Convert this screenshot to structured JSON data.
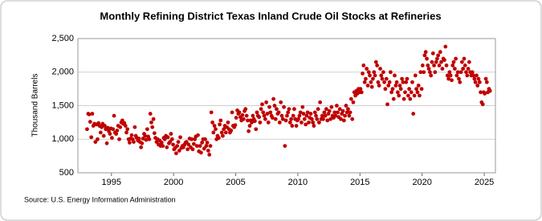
{
  "chart_data": {
    "type": "scatter",
    "title": "Monthly Refining District Texas Inland Crude Oil Stocks at Refineries",
    "y_label": "Thousand Barrels",
    "source": "Source: U.S. Energy Information Administration",
    "color": "#c00000",
    "grid": true,
    "xlim": [
      1992.3,
      2025.9
    ],
    "xticks": [
      1995,
      2000,
      2005,
      2010,
      2015,
      2020,
      2025
    ],
    "ylim": [
      500,
      2500
    ],
    "yticks": [
      500,
      {
        "value": 1000,
        "label": "1,000"
      },
      {
        "value": 1500,
        "label": "1,500"
      },
      {
        "value": 2000,
        "label": "2,000"
      },
      {
        "value": 2500,
        "label": "2,500"
      }
    ],
    "series": [
      {
        "name": "Texas Inland Crude Oil Stocks",
        "color": "#c00000",
        "x": [
          1993.04,
          1993.13,
          1993.21,
          1993.29,
          1993.38,
          1993.46,
          1993.54,
          1993.63,
          1993.71,
          1993.79,
          1993.88,
          1993.96,
          1994.04,
          1994.13,
          1994.21,
          1994.29,
          1994.38,
          1994.46,
          1994.54,
          1994.63,
          1994.71,
          1994.79,
          1994.88,
          1994.96,
          1995.04,
          1995.13,
          1995.21,
          1995.29,
          1995.38,
          1995.46,
          1995.54,
          1995.63,
          1995.71,
          1995.79,
          1995.88,
          1995.96,
          1996.04,
          1996.13,
          1996.21,
          1996.29,
          1996.38,
          1996.46,
          1996.54,
          1996.63,
          1996.71,
          1996.79,
          1996.88,
          1996.96,
          1997.04,
          1997.13,
          1997.21,
          1997.29,
          1997.38,
          1997.46,
          1997.54,
          1997.63,
          1997.71,
          1997.79,
          1997.88,
          1997.96,
          1998.04,
          1998.13,
          1998.21,
          1998.29,
          1998.38,
          1998.46,
          1998.54,
          1998.63,
          1998.71,
          1998.79,
          1998.88,
          1998.96,
          1999.04,
          1999.13,
          1999.21,
          1999.29,
          1999.38,
          1999.46,
          1999.54,
          1999.63,
          1999.71,
          1999.79,
          1999.88,
          1999.96,
          2000.04,
          2000.13,
          2000.21,
          2000.29,
          2000.38,
          2000.46,
          2000.54,
          2000.63,
          2000.71,
          2000.79,
          2000.88,
          2000.96,
          2001.04,
          2001.13,
          2001.21,
          2001.29,
          2001.38,
          2001.46,
          2001.54,
          2001.63,
          2001.71,
          2001.79,
          2001.88,
          2001.96,
          2002.04,
          2002.13,
          2002.21,
          2002.29,
          2002.38,
          2002.46,
          2002.54,
          2002.63,
          2002.71,
          2002.79,
          2002.88,
          2002.96,
          2003.04,
          2003.13,
          2003.21,
          2003.29,
          2003.38,
          2003.46,
          2003.54,
          2003.63,
          2003.71,
          2003.79,
          2003.88,
          2003.96,
          2004.04,
          2004.13,
          2004.21,
          2004.29,
          2004.38,
          2004.46,
          2004.54,
          2004.63,
          2004.71,
          2004.79,
          2004.88,
          2004.96,
          2005.04,
          2005.13,
          2005.21,
          2005.29,
          2005.38,
          2005.46,
          2005.54,
          2005.63,
          2005.71,
          2005.79,
          2005.88,
          2005.96,
          2006.04,
          2006.13,
          2006.21,
          2006.29,
          2006.38,
          2006.46,
          2006.54,
          2006.63,
          2006.71,
          2006.79,
          2006.88,
          2006.96,
          2007.04,
          2007.13,
          2007.21,
          2007.29,
          2007.38,
          2007.46,
          2007.54,
          2007.63,
          2007.71,
          2007.79,
          2007.88,
          2007.96,
          2008.04,
          2008.13,
          2008.21,
          2008.29,
          2008.38,
          2008.46,
          2008.54,
          2008.63,
          2008.71,
          2008.79,
          2008.88,
          2008.96,
          2009.04,
          2009.13,
          2009.21,
          2009.29,
          2009.38,
          2009.46,
          2009.54,
          2009.63,
          2009.71,
          2009.79,
          2009.88,
          2009.96,
          2010.04,
          2010.13,
          2010.21,
          2010.29,
          2010.38,
          2010.46,
          2010.54,
          2010.63,
          2010.71,
          2010.79,
          2010.88,
          2010.96,
          2011.04,
          2011.13,
          2011.21,
          2011.29,
          2011.38,
          2011.46,
          2011.54,
          2011.63,
          2011.71,
          2011.79,
          2011.88,
          2011.96,
          2012.04,
          2012.13,
          2012.21,
          2012.29,
          2012.38,
          2012.46,
          2012.54,
          2012.63,
          2012.71,
          2012.79,
          2012.88,
          2012.96,
          2013.04,
          2013.13,
          2013.21,
          2013.29,
          2013.38,
          2013.46,
          2013.54,
          2013.63,
          2013.71,
          2013.79,
          2013.88,
          2013.96,
          2014.04,
          2014.13,
          2014.21,
          2014.29,
          2014.38,
          2014.46,
          2014.54,
          2014.63,
          2014.71,
          2014.79,
          2014.88,
          2014.96,
          2015.04,
          2015.13,
          2015.21,
          2015.29,
          2015.38,
          2015.46,
          2015.54,
          2015.63,
          2015.71,
          2015.79,
          2015.88,
          2015.96,
          2016.04,
          2016.13,
          2016.21,
          2016.29,
          2016.38,
          2016.46,
          2016.54,
          2016.63,
          2016.71,
          2016.79,
          2016.88,
          2016.96,
          2017.04,
          2017.13,
          2017.21,
          2017.29,
          2017.38,
          2017.46,
          2017.54,
          2017.63,
          2017.71,
          2017.79,
          2017.88,
          2017.96,
          2018.04,
          2018.13,
          2018.21,
          2018.29,
          2018.38,
          2018.46,
          2018.54,
          2018.63,
          2018.71,
          2018.79,
          2018.88,
          2018.96,
          2019.04,
          2019.13,
          2019.21,
          2019.29,
          2019.38,
          2019.46,
          2019.54,
          2019.63,
          2019.71,
          2019.79,
          2019.88,
          2019.96,
          2020.04,
          2020.13,
          2020.21,
          2020.29,
          2020.38,
          2020.46,
          2020.54,
          2020.63,
          2020.71,
          2020.79,
          2020.88,
          2020.96,
          2021.04,
          2021.13,
          2021.21,
          2021.29,
          2021.38,
          2021.46,
          2021.54,
          2021.63,
          2021.71,
          2021.79,
          2021.88,
          2021.96,
          2022.04,
          2022.13,
          2022.21,
          2022.29,
          2022.38,
          2022.46,
          2022.54,
          2022.63,
          2022.71,
          2022.79,
          2022.88,
          2022.96,
          2023.04,
          2023.13,
          2023.21,
          2023.29,
          2023.38,
          2023.46,
          2023.54,
          2023.63,
          2023.71,
          2023.79,
          2023.88,
          2023.96,
          2024.04,
          2024.13,
          2024.21,
          2024.29,
          2024.38,
          2024.46,
          2024.54,
          2024.63,
          2024.71,
          2024.79,
          2024.88,
          2024.96,
          2025.04,
          2025.13,
          2025.21,
          2025.29,
          2025.38,
          2025.46
        ],
        "values": [
          1150,
          1380,
          1370,
          1260,
          1030,
          1380,
          1200,
          1230,
          960,
          1220,
          1000,
          1240,
          1200,
          1100,
          1180,
          1230,
          1050,
          1200,
          1150,
          940,
          1170,
          1120,
          1080,
          1160,
          1020,
          1150,
          1350,
          1100,
          1080,
          1130,
          1200,
          1000,
          1180,
          1250,
          1280,
          1230,
          1240,
          1200,
          1100,
          1150,
          1000,
          950,
          1010,
          1060,
          1000,
          960,
          1180,
          1050,
          1020,
          980,
          1010,
          960,
          880,
          940,
          1010,
          1080,
          1050,
          990,
          1150,
          1040,
          1000,
          1380,
          1250,
          1180,
          1300,
          1090,
          1020,
          960,
          1000,
          920,
          980,
          900,
          950,
          900,
          1020,
          1000,
          1050,
          880,
          1030,
          940,
          960,
          1080,
          1000,
          920,
          850,
          870,
          790,
          900,
          960,
          830,
          1030,
          870,
          900,
          880,
          920,
          950,
          960,
          850,
          920,
          1010,
          880,
          1000,
          850,
          930,
          1000,
          1040,
          900,
          1060,
          820,
          900,
          800,
          950,
          1000,
          860,
          1000,
          900,
          950,
          830,
          770,
          900,
          1400,
          1250,
          1100,
          1200,
          1150,
          1000,
          1050,
          1020,
          1220,
          1280,
          1100,
          1050,
          1150,
          1200,
          1100,
          1180,
          1250,
          1150,
          1100,
          1130,
          1400,
          1200,
          1180,
          1210,
          1320,
          1430,
          1380,
          1400,
          1330,
          1280,
          1360,
          1300,
          1420,
          1450,
          1350,
          1280,
          1120,
          1200,
          1280,
          1250,
          1350,
          1300,
          1270,
          1150,
          1400,
          1350,
          1330,
          1250,
          1450,
          1520,
          1400,
          1350,
          1300,
          1550,
          1380,
          1250,
          1480,
          1400,
          1350,
          1320,
          1600,
          1500,
          1300,
          1450,
          1380,
          1400,
          1250,
          1550,
          1350,
          1300,
          1480,
          900,
          1280,
          1350,
          1400,
          1450,
          1250,
          1300,
          1200,
          1350,
          1450,
          1300,
          1200,
          1280,
          1300,
          1350,
          1400,
          1250,
          1480,
          1380,
          1300,
          1220,
          1350,
          1400,
          1250,
          1320,
          1380,
          1300,
          1250,
          1200,
          1400,
          1350,
          1300,
          1450,
          1250,
          1550,
          1300,
          1350,
          1300,
          1400,
          1350,
          1450,
          1280,
          1380,
          1420,
          1300,
          1480,
          1350,
          1320,
          1400,
          1350,
          1500,
          1400,
          1330,
          1450,
          1300,
          1380,
          1420,
          1280,
          1350,
          1500,
          1400,
          1450,
          1350,
          1400,
          1600,
          1300,
          1550,
          1700,
          1650,
          1720,
          1680,
          1750,
          1700,
          1750,
          1700,
          1980,
          2100,
          1850,
          1900,
          2050,
          1800,
          2000,
          1950,
          1850,
          1780,
          1900,
          2000,
          1950,
          2150,
          2100,
          1850,
          1800,
          2050,
          1950,
          1900,
          2000,
          1850,
          1750,
          1900,
          1520,
          1800,
          1850,
          2000,
          1700,
          1750,
          1600,
          1950,
          1800,
          1850,
          1700,
          1650,
          1800,
          1750,
          1900,
          1850,
          1600,
          1700,
          1850,
          1900,
          1650,
          1750,
          1600,
          1700,
          1850,
          1380,
          1650,
          1950,
          1750,
          1700,
          1800,
          1650,
          2000,
          1750,
          2100,
          2000,
          2250,
          2300,
          2200,
          2100,
          2050,
          2000,
          1950,
          2150,
          2280,
          2100,
          2000,
          2150,
          2200,
          2250,
          2100,
          2300,
          2150,
          2050,
          2200,
          2180,
          2380,
          2100,
          1950,
          1900,
          2000,
          1950,
          1880,
          2100,
          2150,
          2050,
          2200,
          1950,
          2000,
          1900,
          1850,
          2000,
          2150,
          2050,
          2200,
          2100,
          2000,
          1950,
          2050,
          2150,
          2000,
          1950,
          2000,
          1950,
          1900,
          1850,
          1950,
          1800,
          1900,
          1850,
          1700,
          1550,
          1520,
          1700,
          1680,
          1900,
          1850,
          1700,
          1750,
          1720
        ]
      }
    ]
  }
}
